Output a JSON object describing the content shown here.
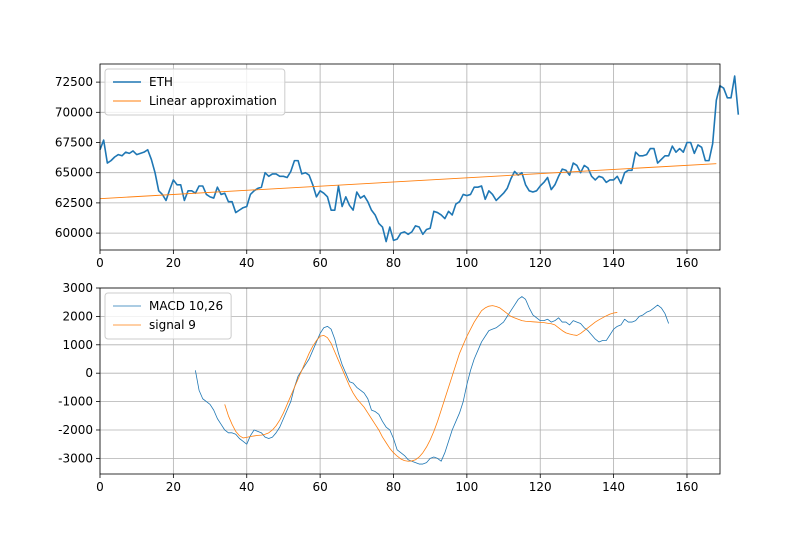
{
  "chart_data": [
    {
      "type": "line",
      "xlim": [
        0,
        169
      ],
      "ylim": [
        58600,
        74000
      ],
      "grid": true,
      "legend_position": "upper-left",
      "xticks": [
        0,
        20,
        40,
        60,
        80,
        100,
        120,
        140,
        160
      ],
      "yticks": [
        60000,
        62500,
        65000,
        67500,
        70000,
        72500
      ],
      "series": [
        {
          "name": "ETH",
          "color": "#1f77b4",
          "x_start": 0,
          "values": [
            66900,
            67700,
            65800,
            66000,
            66300,
            66500,
            66400,
            66700,
            66600,
            66800,
            66500,
            66600,
            66700,
            66900,
            66100,
            65000,
            63500,
            63200,
            62700,
            63600,
            64400,
            64000,
            64000,
            62700,
            63500,
            63500,
            63300,
            63900,
            63900,
            63200,
            63000,
            62900,
            63800,
            63200,
            63300,
            62600,
            62600,
            61700,
            61900,
            62100,
            62200,
            63200,
            63500,
            63700,
            63800,
            65000,
            64700,
            64900,
            64900,
            64700,
            64700,
            64600,
            65100,
            66000,
            66000,
            64900,
            65000,
            64800,
            64000,
            63000,
            63500,
            63300,
            63000,
            61900,
            61900,
            63900,
            62200,
            63000,
            62300,
            61900,
            63400,
            62900,
            63100,
            62600,
            61900,
            61500,
            60800,
            60500,
            59300,
            60500,
            59400,
            59500,
            60000,
            60100,
            59900,
            60100,
            60600,
            60500,
            59900,
            60300,
            60400,
            61800,
            61700,
            61500,
            61200,
            61800,
            61500,
            62400,
            62600,
            63200,
            63100,
            63200,
            63800,
            63800,
            63900,
            62800,
            63500,
            63200,
            62700,
            63000,
            63300,
            63700,
            64500,
            65100,
            64800,
            65000,
            64000,
            63500,
            63400,
            63500,
            63900,
            64200,
            64600,
            63600,
            64000,
            64700,
            65300,
            65200,
            64800,
            65800,
            65600,
            65000,
            65600,
            65400,
            64700,
            64400,
            64700,
            64600,
            64200,
            64400,
            64400,
            64700,
            64100,
            65000,
            65200,
            65200,
            66700,
            66400,
            66400,
            66500,
            67000,
            67000,
            65800,
            66100,
            66400,
            66400,
            67200,
            66700,
            67000,
            66700,
            67500,
            67500,
            66600,
            67300,
            67100,
            66000,
            66000,
            67400,
            71000,
            72200,
            72000,
            71200,
            71200,
            73000,
            69800
          ]
        },
        {
          "name": "Linear approximation",
          "color": "#ff7f0e",
          "x": [
            0,
            168
          ],
          "values": [
            62850,
            65750
          ]
        }
      ]
    },
    {
      "type": "line",
      "xlim": [
        0,
        169
      ],
      "ylim": [
        -3550,
        3000
      ],
      "grid": true,
      "legend_position": "upper-left",
      "xticks": [
        0,
        20,
        40,
        60,
        80,
        100,
        120,
        140,
        160
      ],
      "yticks": [
        -3000,
        -2000,
        -1000,
        0,
        1000,
        2000,
        3000
      ],
      "series": [
        {
          "name": "MACD 10,26",
          "color": "#1f77b4",
          "x_start": 26,
          "values": [
            100,
            -600,
            -900,
            -1000,
            -1100,
            -1300,
            -1600,
            -1800,
            -2000,
            -2100,
            -2100,
            -2150,
            -2300,
            -2400,
            -2500,
            -2200,
            -2000,
            -2050,
            -2100,
            -2250,
            -2300,
            -2250,
            -2100,
            -1900,
            -1600,
            -1300,
            -1000,
            -500,
            -100,
            100,
            300,
            500,
            800,
            1100,
            1400,
            1600,
            1650,
            1550,
            1200,
            700,
            300,
            0,
            -300,
            -350,
            -500,
            -600,
            -700,
            -900,
            -1300,
            -1350,
            -1450,
            -1700,
            -1900,
            -2000,
            -2300,
            -2700,
            -2800,
            -2900,
            -3050,
            -3100,
            -3150,
            -3200,
            -3200,
            -3150,
            -3000,
            -2950,
            -3000,
            -3100,
            -2800,
            -2400,
            -2000,
            -1700,
            -1400,
            -1000,
            -400,
            100,
            500,
            800,
            1100,
            1300,
            1500,
            1550,
            1600,
            1700,
            1800,
            2000,
            2200,
            2400,
            2600,
            2700,
            2600,
            2300,
            2050,
            1950,
            1850,
            1850,
            1900,
            1800,
            1850,
            1950,
            1800,
            1800,
            1700,
            1850,
            1800,
            1750,
            1600,
            1500,
            1350,
            1200,
            1100,
            1150,
            1150,
            1350,
            1550,
            1650,
            1700,
            1900,
            1800,
            1800,
            1850,
            2000,
            2050,
            2150,
            2200,
            2300,
            2400,
            2300,
            2100,
            1750
          ]
        },
        {
          "name": "signal 9",
          "color": "#ff7f0e",
          "x_start": 34,
          "values": [
            -1100,
            -1500,
            -1800,
            -2050,
            -2200,
            -2280,
            -2260,
            -2230,
            -2210,
            -2190,
            -2180,
            -2150,
            -2100,
            -2000,
            -1850,
            -1650,
            -1400,
            -1100,
            -800,
            -500,
            -200,
            100,
            400,
            700,
            950,
            1150,
            1300,
            1330,
            1250,
            1050,
            750,
            450,
            150,
            -150,
            -450,
            -700,
            -900,
            -1050,
            -1200,
            -1400,
            -1600,
            -1800,
            -2000,
            -2250,
            -2450,
            -2650,
            -2800,
            -2920,
            -3020,
            -3080,
            -3100,
            -3090,
            -3050,
            -2950,
            -2800,
            -2600,
            -2350,
            -2050,
            -1700,
            -1300,
            -900,
            -500,
            -100,
            300,
            700,
            1000,
            1300,
            1550,
            1800,
            2000,
            2200,
            2300,
            2360,
            2380,
            2350,
            2300,
            2200,
            2100,
            2000,
            1950,
            1900,
            1850,
            1830,
            1820,
            1810,
            1800,
            1790,
            1780,
            1760,
            1740,
            1700,
            1600,
            1500,
            1420,
            1380,
            1350,
            1330,
            1400,
            1500,
            1600,
            1700,
            1800,
            1880,
            1950,
            2020,
            2080,
            2120,
            2140
          ]
        }
      ]
    }
  ]
}
